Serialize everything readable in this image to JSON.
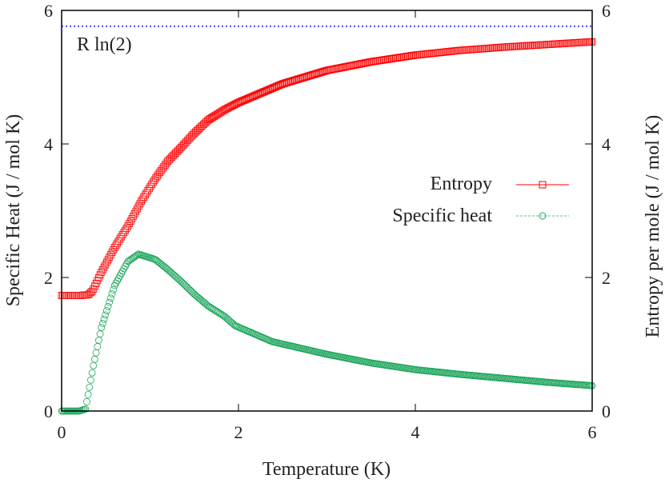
{
  "chart_data": {
    "type": "scatter",
    "xlabel": "Temperature (K)",
    "ylabel": "Specific Heat (J / mol K)",
    "y2label": "Entropy per mole (J / mol K)",
    "xlim": [
      0,
      6
    ],
    "ylim": [
      0,
      6
    ],
    "y2lim": [
      0,
      6
    ],
    "xticks": [
      "0",
      "2",
      "4",
      "6"
    ],
    "yticks": [
      "0",
      "2",
      "4",
      "6"
    ],
    "y2ticks": [
      "0",
      "2",
      "4",
      "6"
    ],
    "grid": false,
    "legend_placement": "right-center",
    "reference_line": {
      "label": "R ln(2)",
      "y": 5.763,
      "color": "#0000ff",
      "style": "dotted"
    },
    "series": [
      {
        "name": "Entropy",
        "color": "#ff0000",
        "marker": "square",
        "axis": "y2",
        "x": [
          0,
          0.1,
          0.2,
          0.3,
          0.35,
          0.45,
          0.6,
          0.75,
          0.9,
          1.06,
          1.2,
          1.36,
          1.5,
          1.66,
          1.84,
          2.0,
          2.5,
          3.0,
          3.5,
          4.0,
          4.5,
          5.0,
          5.5,
          6.0
        ],
        "y": [
          1.73,
          1.73,
          1.73,
          1.74,
          1.8,
          2.08,
          2.45,
          2.77,
          3.14,
          3.48,
          3.74,
          3.96,
          4.16,
          4.36,
          4.51,
          4.62,
          4.9,
          5.1,
          5.23,
          5.33,
          5.4,
          5.45,
          5.49,
          5.53
        ]
      },
      {
        "name": "Specific heat",
        "color": "#1aa55a",
        "marker": "circle",
        "axis": "y",
        "x": [
          0,
          0.1,
          0.2,
          0.27,
          0.36,
          0.45,
          0.6,
          0.75,
          0.87,
          1.06,
          1.2,
          1.36,
          1.5,
          1.66,
          1.84,
          1.96,
          2.38,
          3.0,
          3.5,
          4.0,
          4.5,
          5.0,
          5.5,
          6.0
        ],
        "y": [
          0,
          0,
          0,
          0.03,
          0.68,
          1.25,
          1.88,
          2.24,
          2.35,
          2.27,
          2.12,
          1.93,
          1.75,
          1.57,
          1.42,
          1.28,
          1.04,
          0.85,
          0.72,
          0.62,
          0.55,
          0.49,
          0.43,
          0.38
        ]
      }
    ]
  }
}
